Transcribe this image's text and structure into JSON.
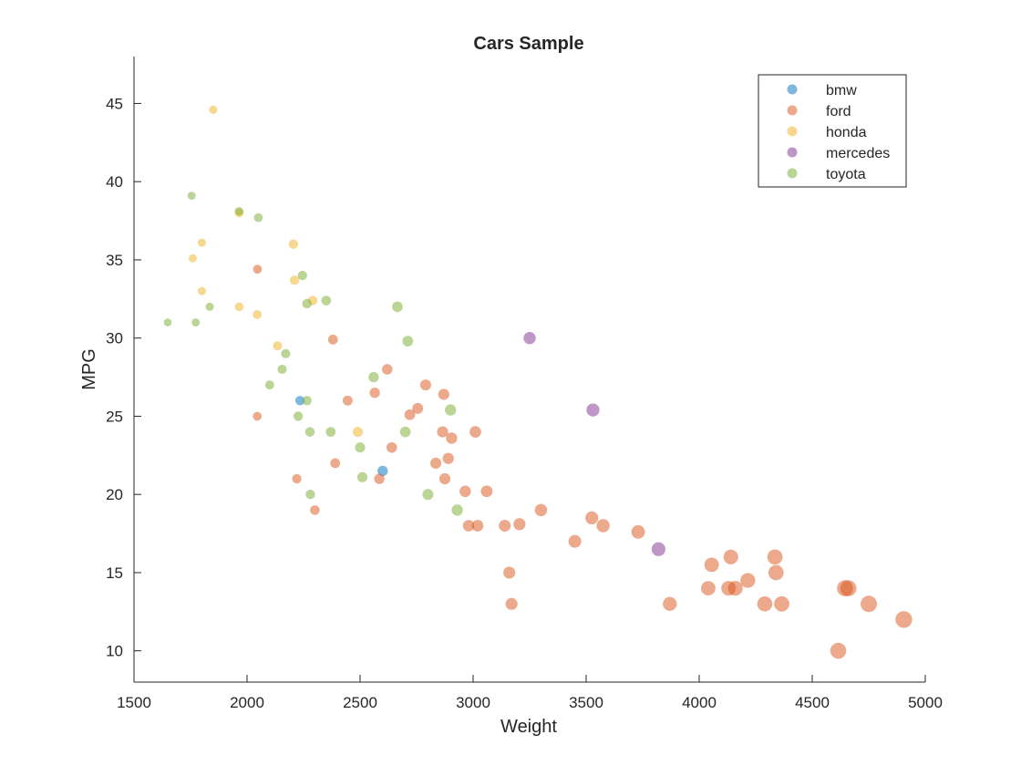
{
  "chart_data": {
    "type": "scatter",
    "title": "Cars Sample",
    "xlabel": "Weight",
    "ylabel": "MPG",
    "xlim": [
      1500,
      5000
    ],
    "ylim": [
      8,
      48
    ],
    "xticks": [
      1500,
      2000,
      2500,
      3000,
      3500,
      4000,
      4500,
      5000
    ],
    "yticks": [
      10,
      15,
      20,
      25,
      30,
      35,
      40,
      45
    ],
    "grid": false,
    "legend_position": "top-right",
    "marker_size_encodes": "Weight",
    "series": [
      {
        "name": "bmw",
        "color": "#0072BD",
        "points": [
          [
            2234,
            26
          ],
          [
            2600,
            21.5
          ]
        ]
      },
      {
        "name": "ford",
        "color": "#D95319",
        "points": [
          [
            2046,
            34.4
          ],
          [
            2045,
            25
          ],
          [
            2220,
            21
          ],
          [
            2300,
            19
          ],
          [
            2380,
            29.9
          ],
          [
            2390,
            22
          ],
          [
            2445,
            26
          ],
          [
            2565,
            26.5
          ],
          [
            2585,
            21
          ],
          [
            2620,
            28
          ],
          [
            2640,
            23
          ],
          [
            2720,
            25.1
          ],
          [
            2755,
            25.5
          ],
          [
            2790,
            27
          ],
          [
            2835,
            22
          ],
          [
            2865,
            24
          ],
          [
            2870,
            26.4
          ],
          [
            2875,
            21
          ],
          [
            2890,
            22.3
          ],
          [
            2905,
            23.6
          ],
          [
            2965,
            20.2
          ],
          [
            2980,
            18
          ],
          [
            3010,
            24
          ],
          [
            3020,
            18
          ],
          [
            3060,
            20.2
          ],
          [
            3140,
            18
          ],
          [
            3160,
            15
          ],
          [
            3170,
            13
          ],
          [
            3205,
            18.1
          ],
          [
            3300,
            19
          ],
          [
            3450,
            17
          ],
          [
            3525,
            18.5
          ],
          [
            3575,
            18
          ],
          [
            3730,
            17.6
          ],
          [
            3870,
            13
          ],
          [
            4040,
            14
          ],
          [
            4055,
            15.5
          ],
          [
            4130,
            14
          ],
          [
            4140,
            16
          ],
          [
            4160,
            14
          ],
          [
            4215,
            14.5
          ],
          [
            4290,
            13
          ],
          [
            4335,
            16
          ],
          [
            4340,
            15
          ],
          [
            4365,
            13
          ],
          [
            4615,
            10
          ],
          [
            4645,
            14
          ],
          [
            4660,
            14
          ],
          [
            4750,
            13
          ],
          [
            4905,
            12
          ]
        ]
      },
      {
        "name": "honda",
        "color": "#EDB120",
        "points": [
          [
            1850,
            44.6
          ],
          [
            1760,
            35.1
          ],
          [
            1800,
            36.1
          ],
          [
            1800,
            33
          ],
          [
            1965,
            32
          ],
          [
            1965,
            38
          ],
          [
            2045,
            31.5
          ],
          [
            2135,
            29.5
          ],
          [
            2205,
            36
          ],
          [
            2210,
            33.7
          ],
          [
            2290,
            32.4
          ],
          [
            2490,
            24
          ]
        ]
      },
      {
        "name": "mercedes",
        "color": "#7E2F8E",
        "points": [
          [
            3250,
            30
          ],
          [
            3530,
            25.4
          ],
          [
            3820,
            16.5
          ]
        ]
      },
      {
        "name": "toyota",
        "color": "#77AC30",
        "points": [
          [
            1649,
            31
          ],
          [
            1755,
            39.1
          ],
          [
            1773,
            31
          ],
          [
            1835,
            32
          ],
          [
            1965,
            38.1
          ],
          [
            2050,
            37.7
          ],
          [
            2100,
            27
          ],
          [
            2155,
            28
          ],
          [
            2171,
            29
          ],
          [
            2226,
            25
          ],
          [
            2245,
            34
          ],
          [
            2265,
            26
          ],
          [
            2265,
            32.2
          ],
          [
            2278,
            24
          ],
          [
            2280,
            20
          ],
          [
            2350,
            32.4
          ],
          [
            2370,
            24
          ],
          [
            2500,
            23
          ],
          [
            2510,
            21.1
          ],
          [
            2560,
            27.5
          ],
          [
            2665,
            32
          ],
          [
            2700,
            24
          ],
          [
            2711,
            29.8
          ],
          [
            2800,
            20
          ],
          [
            2900,
            25.4
          ],
          [
            2930,
            19
          ]
        ]
      }
    ]
  }
}
